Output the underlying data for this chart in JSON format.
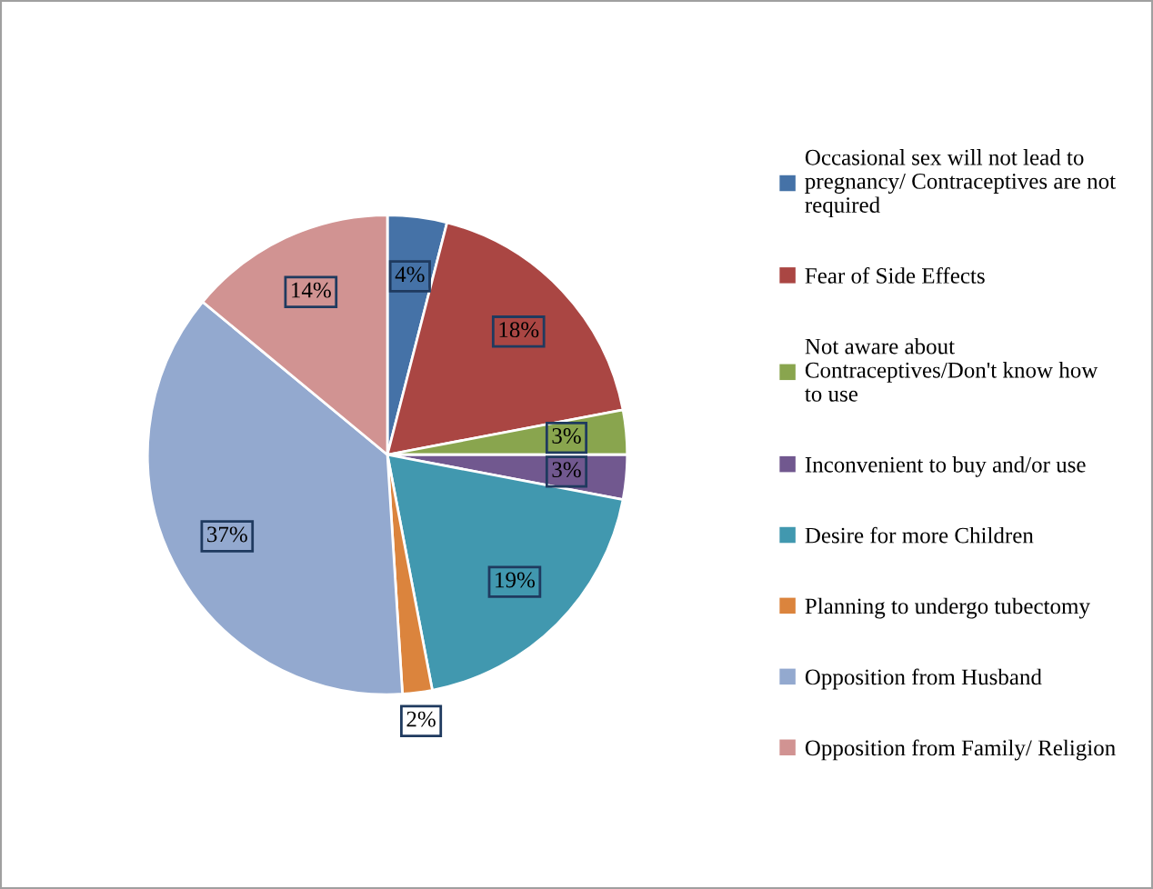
{
  "chart_data": {
    "type": "pie",
    "categories": [
      "Occasional sex will not lead to\npregnancy/ Contraceptives are not\nrequired",
      "Fear of Side Effects",
      "Not aware about\nContraceptives/Don't know how\nto use",
      "Inconvenient to buy and/or use",
      "Desire for more Children",
      "Planning to undergo tubectomy",
      "Opposition from Husband",
      "Opposition from Family/ Religion"
    ],
    "values": [
      4,
      18,
      3,
      3,
      19,
      2,
      37,
      14
    ],
    "value_labels": [
      "4%",
      "18%",
      "3%",
      "3%",
      "19%",
      "2%",
      "37%",
      "14%"
    ],
    "colors": [
      "#4572a7",
      "#aa4643",
      "#89a54e",
      "#71588f",
      "#4198af",
      "#db843d",
      "#93a9cf",
      "#d19392"
    ],
    "legend": "right"
  }
}
